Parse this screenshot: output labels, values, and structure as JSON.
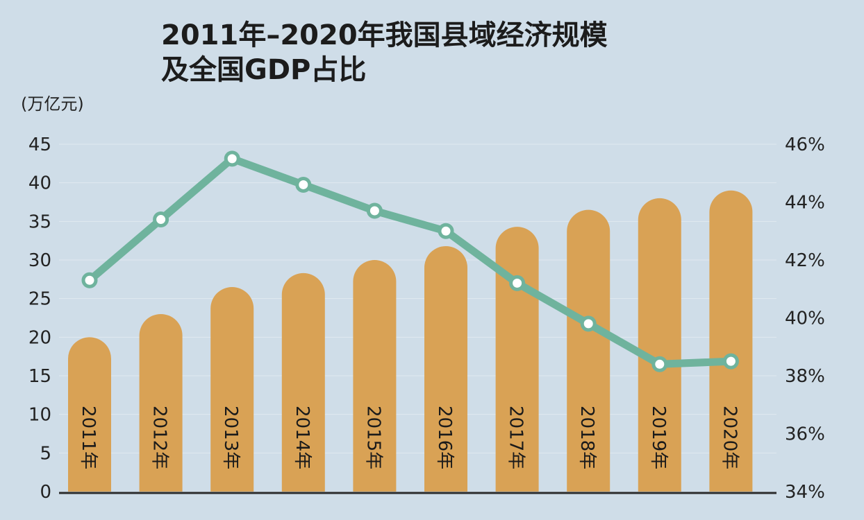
{
  "chart_data": {
    "type": "bar",
    "title_lines": [
      "2011年–2020年我国县域经济规模",
      "及全国GDP占比"
    ],
    "ylabel": "(万亿元)",
    "categories": [
      "2011年",
      "2012年",
      "2013年",
      "2014年",
      "2015年",
      "2016年",
      "2017年",
      "2018年",
      "2019年",
      "2020年"
    ],
    "ylim": [
      0,
      45
    ],
    "yticks": [
      "0",
      "5",
      "10",
      "15",
      "20",
      "25",
      "30",
      "35",
      "40",
      "45"
    ],
    "y2lim": [
      34,
      46
    ],
    "y2ticks": [
      "34%",
      "36%",
      "38%",
      "40%",
      "42%",
      "44%",
      "46%"
    ],
    "series": [
      {
        "type": "bar",
        "values": [
          20,
          23,
          26.5,
          28.3,
          30,
          31.8,
          34.3,
          36.5,
          38,
          39
        ]
      },
      {
        "type": "line",
        "axis": "right",
        "values": [
          41.3,
          43.4,
          45.5,
          44.6,
          43.7,
          43.0,
          41.2,
          39.8,
          38.4,
          38.5
        ]
      }
    ],
    "colors": {
      "bar": "#d9a255",
      "line": "#6fb39d",
      "background": "#cfdde8"
    }
  }
}
